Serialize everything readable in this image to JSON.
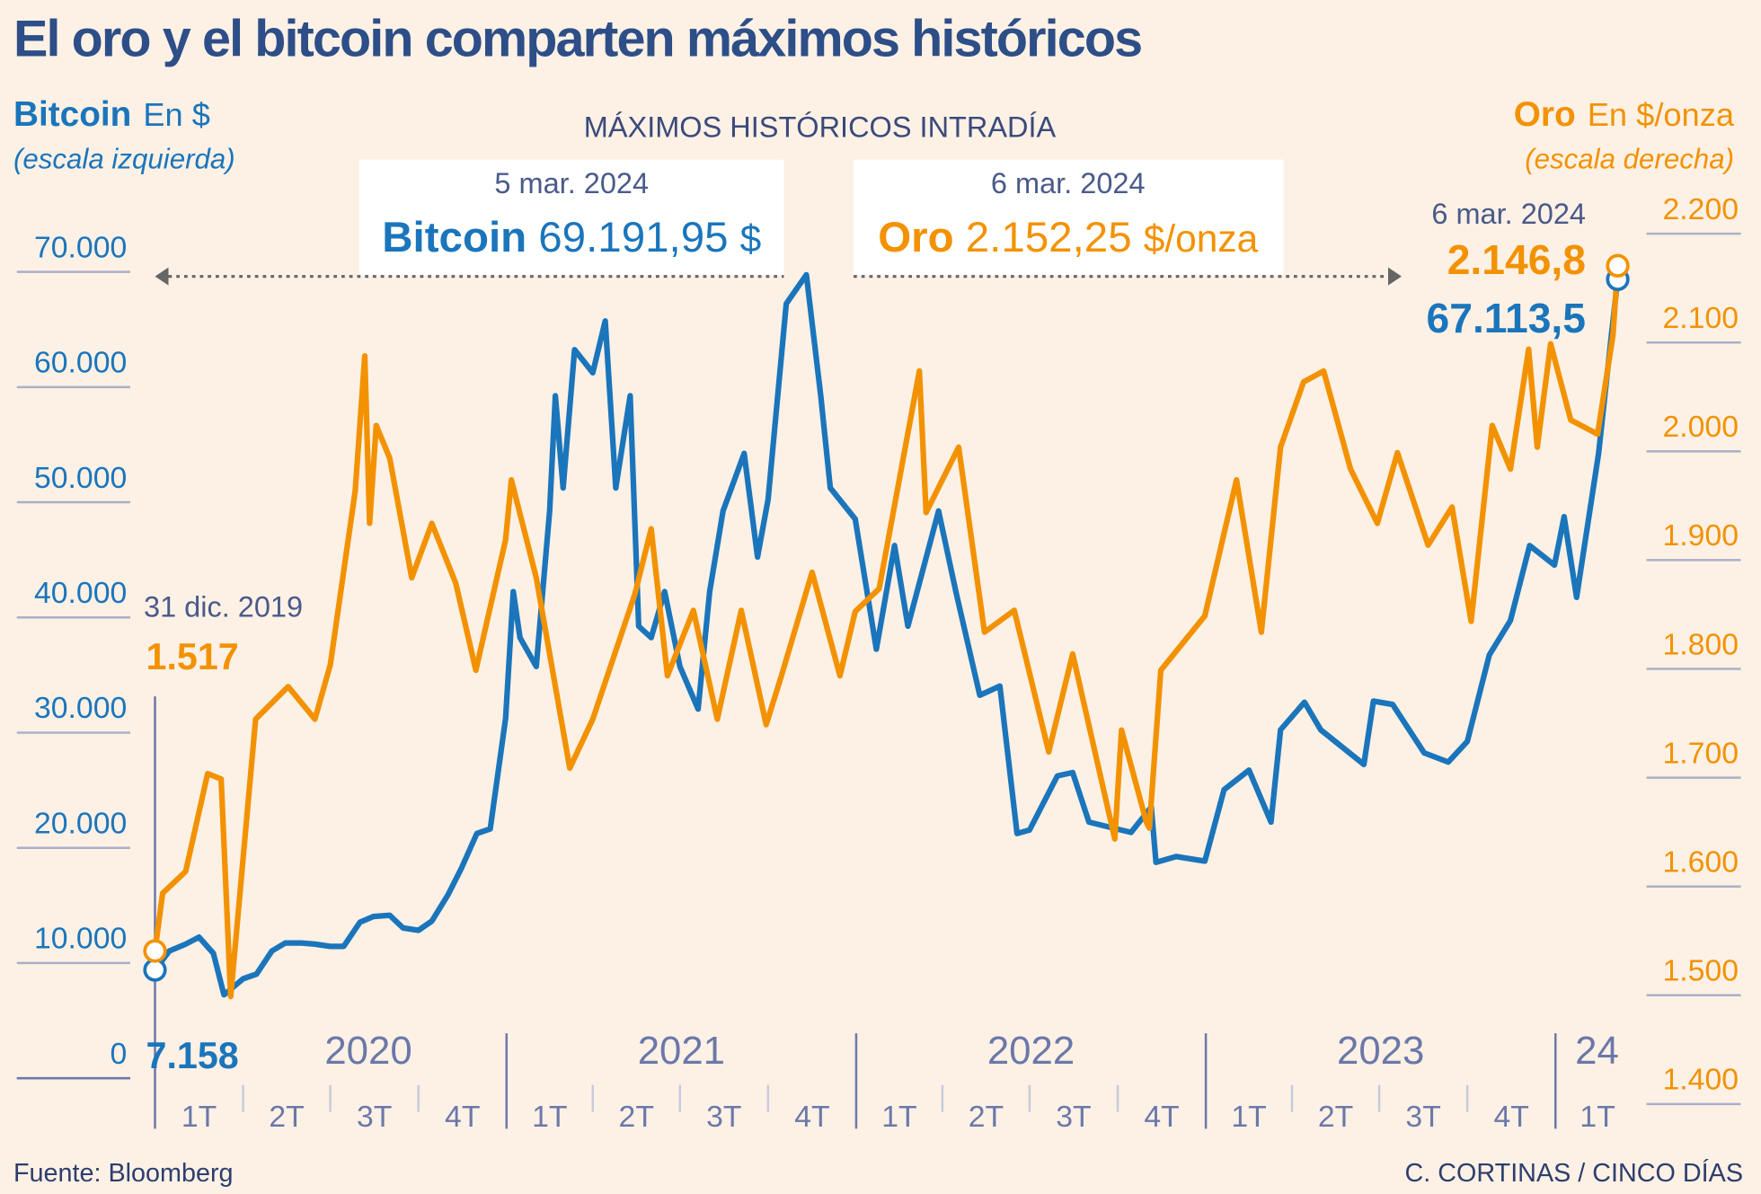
{
  "title": "El oro y el bitcoin comparten máximos históricos",
  "left_legend": {
    "name": "Bitcoin",
    "unit": "En $",
    "note": "(escala izquierda)"
  },
  "right_legend": {
    "name": "Oro",
    "unit": "En $/onza",
    "note": "(escala derecha)"
  },
  "highs": {
    "heading": "MÁXIMOS HISTÓRICOS INTRADÍA",
    "bitcoin": {
      "date": "5 mar. 2024",
      "name": "Bitcoin",
      "value": "69.191,95",
      "unit": "$"
    },
    "gold": {
      "date": "6 mar. 2024",
      "name": "Oro",
      "value": "2.152,25",
      "unit": "$/onza"
    }
  },
  "start_label": {
    "date": "31 dic. 2019",
    "gold": "1.517",
    "bitcoin": "7.158"
  },
  "end_label": {
    "date": "6 mar. 2024",
    "gold": "2.146,8",
    "bitcoin": "67.113,5"
  },
  "footer": {
    "source": "Fuente: Bloomberg",
    "credit": "C. CORTINAS / CINCO DÍAS"
  },
  "colors": {
    "bitcoin": "#1b75bb",
    "gold": "#f39200",
    "title": "#2d4e87",
    "background": "#fdf1e6",
    "axis": "#6b78a8"
  },
  "chart_data": {
    "type": "line",
    "title": "El oro y el bitcoin comparten máximos históricos",
    "x_range": [
      "2019-12-31",
      "2024-03-06"
    ],
    "years": [
      "2020",
      "2021",
      "2022",
      "2023",
      "24"
    ],
    "quarters": [
      "1T",
      "2T",
      "3T",
      "4T",
      "1T",
      "2T",
      "3T",
      "4T",
      "1T",
      "2T",
      "3T",
      "4T",
      "1T",
      "2T",
      "3T",
      "4T",
      "1T"
    ],
    "left_axis": {
      "label": "Bitcoin En $",
      "ylim": [
        0,
        70000
      ],
      "ticks": [
        "0",
        "10.000",
        "20.000",
        "30.000",
        "40.000",
        "50.000",
        "60.000",
        "70.000"
      ]
    },
    "right_axis": {
      "label": "Oro En $/onza",
      "ylim": [
        1400,
        2200
      ],
      "ticks": [
        "1.400",
        "1.500",
        "1.600",
        "1.700",
        "1.800",
        "1.900",
        "2.000",
        "2.100",
        "2.200"
      ]
    },
    "grid": false,
    "series": [
      {
        "name": "Bitcoin",
        "axis": "left",
        "points": [
          [
            "2019-12-31",
            7158
          ],
          [
            "2020-01-15",
            8800
          ],
          [
            "2020-02-01",
            9400
          ],
          [
            "2020-02-15",
            10000
          ],
          [
            "2020-03-01",
            8600
          ],
          [
            "2020-03-12",
            5000
          ],
          [
            "2020-03-15",
            5200
          ],
          [
            "2020-04-01",
            6400
          ],
          [
            "2020-04-15",
            6800
          ],
          [
            "2020-05-01",
            8800
          ],
          [
            "2020-05-15",
            9500
          ],
          [
            "2020-06-01",
            9500
          ],
          [
            "2020-06-15",
            9400
          ],
          [
            "2020-07-01",
            9200
          ],
          [
            "2020-07-15",
            9200
          ],
          [
            "2020-08-01",
            11300
          ],
          [
            "2020-08-15",
            11800
          ],
          [
            "2020-09-01",
            11900
          ],
          [
            "2020-09-15",
            10800
          ],
          [
            "2020-10-01",
            10600
          ],
          [
            "2020-10-15",
            11400
          ],
          [
            "2020-11-01",
            13700
          ],
          [
            "2020-11-15",
            16000
          ],
          [
            "2020-12-01",
            19000
          ],
          [
            "2020-12-15",
            19400
          ],
          [
            "2020-12-31",
            29000
          ],
          [
            "2021-01-08",
            40000
          ],
          [
            "2021-01-15",
            36000
          ],
          [
            "2021-02-01",
            33500
          ],
          [
            "2021-02-15",
            47000
          ],
          [
            "2021-02-21",
            57000
          ],
          [
            "2021-03-01",
            49000
          ],
          [
            "2021-03-13",
            61000
          ],
          [
            "2021-04-01",
            59000
          ],
          [
            "2021-04-14",
            63500
          ],
          [
            "2021-04-25",
            49000
          ],
          [
            "2021-05-10",
            57000
          ],
          [
            "2021-05-19",
            37000
          ],
          [
            "2021-06-01",
            36000
          ],
          [
            "2021-06-15",
            40000
          ],
          [
            "2021-07-01",
            33500
          ],
          [
            "2021-07-20",
            29800
          ],
          [
            "2021-08-01",
            40000
          ],
          [
            "2021-08-15",
            47000
          ],
          [
            "2021-09-06",
            52000
          ],
          [
            "2021-09-20",
            43000
          ],
          [
            "2021-10-01",
            48000
          ],
          [
            "2021-10-20",
            65000
          ],
          [
            "2021-11-10",
            67500
          ],
          [
            "2021-11-25",
            57000
          ],
          [
            "2021-12-05",
            49000
          ],
          [
            "2021-12-31",
            46300
          ],
          [
            "2022-01-22",
            35000
          ],
          [
            "2022-02-10",
            44000
          ],
          [
            "2022-02-24",
            37000
          ],
          [
            "2022-03-28",
            47000
          ],
          [
            "2022-04-15",
            40000
          ],
          [
            "2022-05-10",
            31000
          ],
          [
            "2022-05-31",
            31800
          ],
          [
            "2022-06-18",
            19000
          ],
          [
            "2022-07-01",
            19300
          ],
          [
            "2022-07-30",
            24000
          ],
          [
            "2022-08-15",
            24300
          ],
          [
            "2022-09-01",
            20000
          ],
          [
            "2022-09-15",
            19700
          ],
          [
            "2022-10-15",
            19100
          ],
          [
            "2022-11-05",
            21300
          ],
          [
            "2022-11-10",
            16500
          ],
          [
            "2022-12-01",
            17000
          ],
          [
            "2022-12-31",
            16600
          ],
          [
            "2023-01-20",
            22800
          ],
          [
            "2023-02-15",
            24500
          ],
          [
            "2023-03-10",
            20000
          ],
          [
            "2023-03-20",
            28000
          ],
          [
            "2023-04-14",
            30400
          ],
          [
            "2023-05-01",
            28000
          ],
          [
            "2023-06-15",
            25000
          ],
          [
            "2023-06-25",
            30500
          ],
          [
            "2023-07-15",
            30200
          ],
          [
            "2023-08-17",
            26000
          ],
          [
            "2023-09-11",
            25200
          ],
          [
            "2023-10-01",
            27000
          ],
          [
            "2023-10-24",
            34500
          ],
          [
            "2023-11-15",
            37500
          ],
          [
            "2023-12-05",
            44000
          ],
          [
            "2023-12-31",
            42300
          ],
          [
            "2024-01-10",
            46500
          ],
          [
            "2024-01-23",
            39500
          ],
          [
            "2024-02-15",
            52000
          ],
          [
            "2024-02-28",
            62000
          ],
          [
            "2024-03-06",
            67113.5
          ]
        ]
      },
      {
        "name": "Oro",
        "axis": "right",
        "points": [
          [
            "2019-12-31",
            1517
          ],
          [
            "2020-01-08",
            1570
          ],
          [
            "2020-02-01",
            1590
          ],
          [
            "2020-02-24",
            1680
          ],
          [
            "2020-03-09",
            1675
          ],
          [
            "2020-03-19",
            1475
          ],
          [
            "2020-04-14",
            1730
          ],
          [
            "2020-05-18",
            1760
          ],
          [
            "2020-06-15",
            1730
          ],
          [
            "2020-07-01",
            1780
          ],
          [
            "2020-07-27",
            1940
          ],
          [
            "2020-08-06",
            2064
          ],
          [
            "2020-08-11",
            1910
          ],
          [
            "2020-08-18",
            2000
          ],
          [
            "2020-09-01",
            1970
          ],
          [
            "2020-09-24",
            1860
          ],
          [
            "2020-10-15",
            1910
          ],
          [
            "2020-11-09",
            1855
          ],
          [
            "2020-11-30",
            1775
          ],
          [
            "2020-12-31",
            1895
          ],
          [
            "2021-01-06",
            1950
          ],
          [
            "2021-02-01",
            1860
          ],
          [
            "2021-03-08",
            1685
          ],
          [
            "2021-04-01",
            1730
          ],
          [
            "2021-05-15",
            1845
          ],
          [
            "2021-06-01",
            1905
          ],
          [
            "2021-06-18",
            1770
          ],
          [
            "2021-07-15",
            1830
          ],
          [
            "2021-08-09",
            1730
          ],
          [
            "2021-09-03",
            1830
          ],
          [
            "2021-09-29",
            1725
          ],
          [
            "2021-10-15",
            1770
          ],
          [
            "2021-11-16",
            1865
          ],
          [
            "2021-12-15",
            1770
          ],
          [
            "2021-12-31",
            1829
          ],
          [
            "2022-01-25",
            1850
          ],
          [
            "2022-03-08",
            2050
          ],
          [
            "2022-03-15",
            1920
          ],
          [
            "2022-04-18",
            1980
          ],
          [
            "2022-05-15",
            1810
          ],
          [
            "2022-06-15",
            1830
          ],
          [
            "2022-07-21",
            1700
          ],
          [
            "2022-08-15",
            1790
          ],
          [
            "2022-09-28",
            1620
          ],
          [
            "2022-10-05",
            1720
          ],
          [
            "2022-10-31",
            1635
          ],
          [
            "2022-11-03",
            1630
          ],
          [
            "2022-11-15",
            1775
          ],
          [
            "2022-12-31",
            1825
          ],
          [
            "2023-02-02",
            1950
          ],
          [
            "2023-02-28",
            1810
          ],
          [
            "2023-03-20",
            1980
          ],
          [
            "2023-04-13",
            2040
          ],
          [
            "2023-05-04",
            2050
          ],
          [
            "2023-06-01",
            1960
          ],
          [
            "2023-06-29",
            1910
          ],
          [
            "2023-07-20",
            1975
          ],
          [
            "2023-08-21",
            1890
          ],
          [
            "2023-09-15",
            1925
          ],
          [
            "2023-10-05",
            1820
          ],
          [
            "2023-10-27",
            2000
          ],
          [
            "2023-11-15",
            1960
          ],
          [
            "2023-12-04",
            2070
          ],
          [
            "2023-12-13",
            1980
          ],
          [
            "2023-12-27",
            2075
          ],
          [
            "2024-01-17",
            2005
          ],
          [
            "2024-02-14",
            1992
          ],
          [
            "2024-03-01",
            2083
          ],
          [
            "2024-03-06",
            2146.8
          ]
        ]
      }
    ]
  }
}
